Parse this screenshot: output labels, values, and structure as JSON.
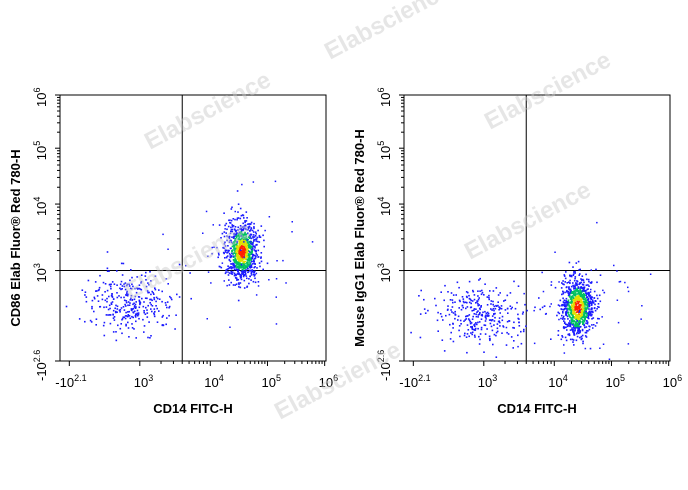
{
  "chart_data": [
    {
      "type": "scatter",
      "xlabel": "CD14 FITC-H",
      "ylabel": "CD86 Elab Fluor® Red 780-H",
      "x_ticks": [
        {
          "base": "-10",
          "exp": "2.1"
        },
        {
          "base": "10",
          "exp": "3"
        },
        {
          "base": "10",
          "exp": "4"
        },
        {
          "base": "10",
          "exp": "5"
        },
        {
          "base": "10",
          "exp": "6"
        }
      ],
      "y_ticks": [
        {
          "base": "-10",
          "exp": "2.6"
        },
        {
          "base": "10",
          "exp": "3"
        },
        {
          "base": "10",
          "exp": "4"
        },
        {
          "base": "10",
          "exp": "5"
        },
        {
          "base": "10",
          "exp": "6"
        }
      ],
      "xscale": "biexponential",
      "yscale": "biexponential",
      "quadrant_gate": {
        "x": 4000,
        "y": 1000
      },
      "populations": [
        {
          "name": "",
          "center": [
            600,
            300
          ],
          "spread": "wide",
          "density": "low",
          "color": "blue"
        },
        {
          "name": "",
          "center": [
            35000,
            2000
          ],
          "spread": "tight",
          "density": "high",
          "color": "blue-green-yellow-red"
        }
      ]
    },
    {
      "type": "scatter",
      "xlabel": "CD14 FITC-H",
      "ylabel": "Mouse IgG1 Elab Fluor® Red 780-H",
      "x_ticks": [
        {
          "base": "-10",
          "exp": "2.1"
        },
        {
          "base": "10",
          "exp": "3"
        },
        {
          "base": "10",
          "exp": "4"
        },
        {
          "base": "10",
          "exp": "5"
        },
        {
          "base": "10",
          "exp": "6"
        }
      ],
      "y_ticks": [
        {
          "base": "-10",
          "exp": "2.6"
        },
        {
          "base": "10",
          "exp": "3"
        },
        {
          "base": "10",
          "exp": "4"
        },
        {
          "base": "10",
          "exp": "5"
        },
        {
          "base": "10",
          "exp": "6"
        }
      ],
      "xscale": "biexponential",
      "yscale": "biexponential",
      "quadrant_gate": {
        "x": 4000,
        "y": 1000
      },
      "populations": [
        {
          "name": "",
          "center": [
            700,
            200
          ],
          "spread": "wide",
          "density": "low",
          "color": "blue"
        },
        {
          "name": "",
          "center": [
            25000,
            250
          ],
          "spread": "tight",
          "density": "high",
          "color": "blue-green-yellow-red"
        }
      ]
    }
  ],
  "watermark": "Elabscience",
  "colors": {
    "sparse": "#1a1aff",
    "mid": "#00c060",
    "dense": "#e0e000",
    "core": "#ff2000",
    "axis": "#000000",
    "watermark": "#c8c8c8"
  }
}
